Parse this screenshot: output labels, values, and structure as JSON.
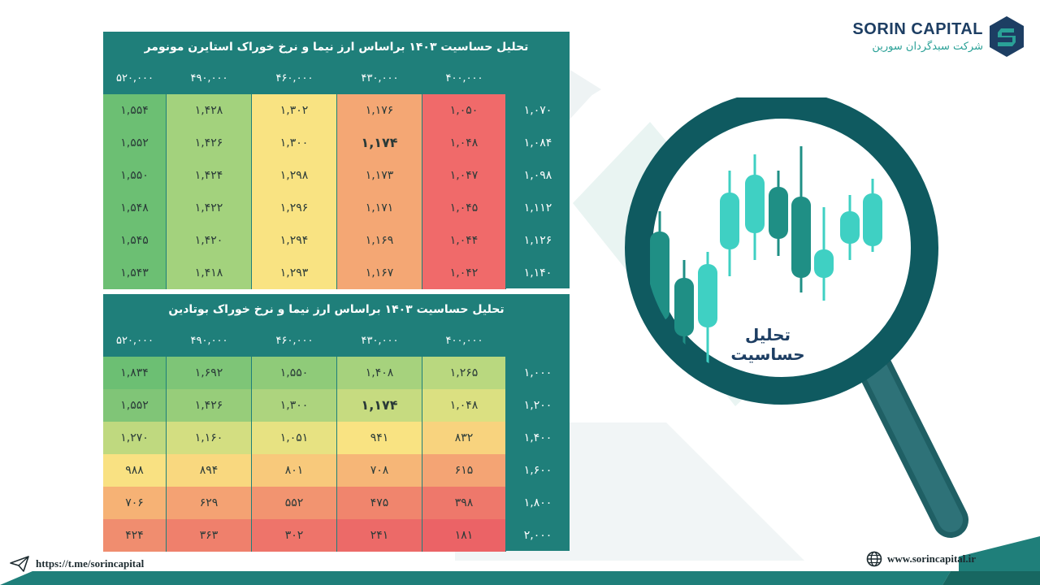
{
  "brand": {
    "name": "SORIN CAPITAL",
    "subtitle": "شرکت سبدگردان سورین"
  },
  "magnifier_label": "تحلیل حساسیت",
  "footer": {
    "telegram": "https://t.me/sorincapital",
    "website": "www.sorincapital.ir"
  },
  "tables": [
    {
      "title": "تحلیل حساسیت ۱۴۰۳ براساس ارز نیما و نرخ خوراک استایرن مونومر",
      "columns": [
        "۵۲۰,۰۰۰",
        "۴۹۰,۰۰۰",
        "۴۶۰,۰۰۰",
        "۴۳۰,۰۰۰",
        "۴۰۰,۰۰۰"
      ],
      "rows": [
        {
          "label": "۱,۰۷۰",
          "cells": [
            "۱,۵۵۴",
            "۱,۴۲۸",
            "۱,۳۰۲",
            "۱,۱۷۶",
            "۱,۰۵۰"
          ]
        },
        {
          "label": "۱,۰۸۴",
          "cells": [
            "۱,۵۵۲",
            "۱,۴۲۶",
            "۱,۳۰۰",
            "۱,۱۷۴",
            "۱,۰۴۸"
          ]
        },
        {
          "label": "۱,۰۹۸",
          "cells": [
            "۱,۵۵۰",
            "۱,۴۲۴",
            "۱,۲۹۸",
            "۱,۱۷۳",
            "۱,۰۴۷"
          ]
        },
        {
          "label": "۱,۱۱۲",
          "cells": [
            "۱,۵۴۸",
            "۱,۴۲۲",
            "۱,۲۹۶",
            "۱,۱۷۱",
            "۱,۰۴۵"
          ]
        },
        {
          "label": "۱,۱۲۶",
          "cells": [
            "۱,۵۴۵",
            "۱,۴۲۰",
            "۱,۲۹۴",
            "۱,۱۶۹",
            "۱,۰۴۴"
          ]
        },
        {
          "label": "۱,۱۴۰",
          "cells": [
            "۱,۵۴۳",
            "۱,۴۱۸",
            "۱,۲۹۳",
            "۱,۱۶۷",
            "۱,۰۴۲"
          ]
        }
      ],
      "colors": [
        [
          "#6cbf73",
          "#a3d27d",
          "#f9e382",
          "#f4a774",
          "#f06a6a"
        ],
        [
          "#6cbf73",
          "#a3d27d",
          "#f9e382",
          "#f4a774",
          "#f06a6a"
        ],
        [
          "#6cbf73",
          "#a3d27d",
          "#f9e382",
          "#f4a774",
          "#f06a6a"
        ],
        [
          "#6cbf73",
          "#a3d27d",
          "#f9e382",
          "#f4a774",
          "#f06a6a"
        ],
        [
          "#6cbf73",
          "#a3d27d",
          "#f9e382",
          "#f4a774",
          "#f06a6a"
        ],
        [
          "#6cbf73",
          "#a3d27d",
          "#f9e382",
          "#f4a774",
          "#f06a6a"
        ]
      ],
      "bold": [
        [
          1,
          3
        ]
      ]
    },
    {
      "title": "تحلیل حساسیت ۱۴۰۳ براساس ارز نیما و نرخ خوراک بوتادین",
      "columns": [
        "۵۲۰,۰۰۰",
        "۴۹۰,۰۰۰",
        "۴۶۰,۰۰۰",
        "۴۳۰,۰۰۰",
        "۴۰۰,۰۰۰"
      ],
      "rows": [
        {
          "label": "۱,۰۰۰",
          "cells": [
            "۱,۸۳۴",
            "۱,۶۹۲",
            "۱,۵۵۰",
            "۱,۴۰۸",
            "۱,۲۶۵"
          ]
        },
        {
          "label": "۱,۲۰۰",
          "cells": [
            "۱,۵۵۲",
            "۱,۴۲۶",
            "۱,۳۰۰",
            "۱,۱۷۴",
            "۱,۰۴۸"
          ]
        },
        {
          "label": "۱,۴۰۰",
          "cells": [
            "۱,۲۷۰",
            "۱,۱۶۰",
            "۱,۰۵۱",
            "۹۴۱",
            "۸۳۲"
          ]
        },
        {
          "label": "۱,۶۰۰",
          "cells": [
            "۹۸۸",
            "۸۹۴",
            "۸۰۱",
            "۷۰۸",
            "۶۱۵"
          ]
        },
        {
          "label": "۱,۸۰۰",
          "cells": [
            "۷۰۶",
            "۶۲۹",
            "۵۵۲",
            "۴۷۵",
            "۳۹۸"
          ]
        },
        {
          "label": "۲,۰۰۰",
          "cells": [
            "۴۲۴",
            "۳۶۳",
            "۳۰۲",
            "۲۴۱",
            "۱۸۱"
          ]
        }
      ],
      "colors": [
        [
          "#6cbf73",
          "#7ec577",
          "#8fcb79",
          "#a6d27d",
          "#b9d87f"
        ],
        [
          "#80c577",
          "#97cd7a",
          "#add47e",
          "#c6db80",
          "#dbe081"
        ],
        [
          "#bfd97f",
          "#d3de81",
          "#e7e282",
          "#f9e382",
          "#f8d37e"
        ],
        [
          "#f9e182",
          "#f9d87f",
          "#f8c97b",
          "#f6b677",
          "#f4a474"
        ],
        [
          "#f6b275",
          "#f4a273",
          "#f29470",
          "#f0856d",
          "#ee786b"
        ],
        [
          "#f08d6f",
          "#ef806c",
          "#ee746a",
          "#ec6a68",
          "#eb6366"
        ]
      ],
      "bold": [
        [
          1,
          3
        ]
      ]
    }
  ]
}
